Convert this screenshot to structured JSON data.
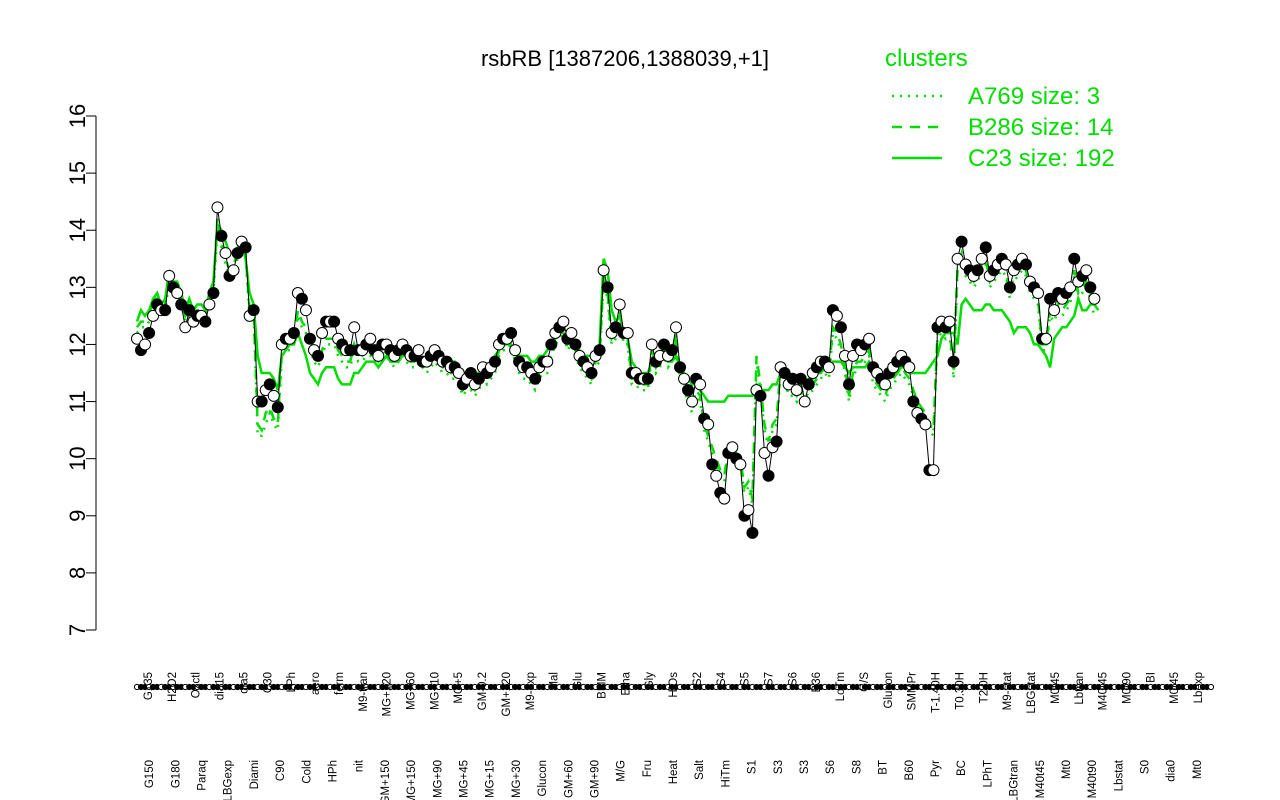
{
  "chart_data": {
    "type": "line",
    "title": "rsbRB [1387206,1388039,+1]",
    "xlabel": "",
    "ylabel": "",
    "ylim": [
      7,
      16
    ],
    "yticks": [
      7,
      8,
      9,
      10,
      11,
      12,
      13,
      14,
      15,
      16
    ],
    "point_count": 268,
    "x_tick_labels_top": [
      "G135",
      "H2O2",
      "Oxctl",
      "dia15",
      "dia5",
      "C30",
      "LPh",
      "aero",
      "ferm",
      "M9-tran",
      "MG+120",
      "MG+60",
      "MG+10",
      "MG+5",
      "GM-0.2",
      "GM+120",
      "M9-exp",
      "Mal",
      "Glu",
      "BMM",
      "Etha",
      "Gly",
      "HiOs",
      "S2",
      "S4",
      "S5",
      "S7",
      "S6",
      "B36",
      "LoTm",
      "G/S",
      "Glucon",
      "SMMPr",
      "T-1.40H",
      "T0.30H",
      "T2.0H",
      "M9-stat",
      "LBGstat",
      "M0t45",
      "Lbtran",
      "M40t45",
      "M0t90",
      "BI",
      "M0t45",
      "Lbexp"
    ],
    "x_tick_labels_bottom": [
      "G150",
      "G180",
      "Paraq",
      "LBGexp",
      "Diami",
      "C90",
      "Cold",
      "HPh",
      "nit",
      "GM+150",
      "MG+150",
      "MG+90",
      "MG+45",
      "MG+15",
      "MG+30",
      "Glucon",
      "GM+60",
      "GM+90",
      "M/G",
      "Fru",
      "Heat",
      "Salt",
      "HiTm",
      "S1",
      "S3",
      "S3",
      "S6",
      "S8",
      "BT",
      "B60",
      "Pyr",
      "BC",
      "LPhT",
      "LBGtran",
      "M40t45",
      "Mt0",
      "M40t90",
      "Lbstat",
      "S0",
      "dia0",
      "Mt0"
    ],
    "legend": {
      "title": "clusters",
      "placement": "top-right",
      "items": [
        {
          "label": "A769 size: 3",
          "style": "dotted"
        },
        {
          "label": "B286 size: 14",
          "style": "dashed"
        },
        {
          "label": "C23 size: 192",
          "style": "solid"
        }
      ]
    },
    "colors": {
      "cluster": "#00dd00",
      "series": "#000000",
      "axes": "#000000"
    },
    "series": [
      {
        "values": [
          12.1,
          11.9,
          12.0,
          12.2,
          12.5,
          12.7,
          12.6,
          12.6,
          13.2,
          13.0,
          12.9,
          12.7,
          12.3,
          12.6,
          12.4,
          12.5,
          12.5,
          12.4,
          12.7,
          12.9,
          14.4,
          13.9,
          13.6,
          13.2,
          13.3,
          13.6,
          13.8,
          13.7,
          12.5,
          12.6,
          11.0,
          11.0,
          11.2,
          11.3,
          11.1,
          10.9,
          12.0,
          12.1,
          12.1,
          12.2,
          12.9,
          12.8,
          12.6,
          12.1,
          11.9,
          11.8,
          12.2,
          12.4,
          12.4,
          12.4,
          12.1,
          12.0,
          11.9,
          11.9,
          12.3,
          11.9,
          11.9,
          12.0,
          12.1,
          11.9,
          11.8,
          12.0,
          12.0,
          11.9,
          11.8,
          11.9,
          12.0,
          11.9,
          11.8,
          11.8,
          11.9,
          11.7,
          11.7,
          11.8,
          11.9,
          11.8,
          11.7,
          11.7,
          11.6,
          11.6,
          11.5,
          11.3,
          11.4,
          11.5,
          11.3,
          11.4,
          11.6,
          11.5,
          11.6,
          11.7,
          12.0,
          12.1,
          12.1,
          12.2,
          11.9,
          11.7,
          11.6,
          11.6,
          11.5,
          11.4,
          11.6,
          11.7,
          11.7,
          12.0,
          12.2,
          12.3,
          12.4,
          12.1,
          12.2,
          12.0,
          11.8,
          11.7,
          11.6,
          11.5,
          11.8,
          11.9,
          13.3,
          13.0,
          12.2,
          12.3,
          12.7,
          12.2,
          12.2,
          11.5,
          11.5,
          11.4,
          11.4,
          11.4,
          12.0,
          11.7,
          11.8,
          12.0,
          11.8,
          11.9,
          12.3,
          11.6,
          11.4,
          11.2,
          11.0,
          11.4,
          11.3,
          10.7,
          10.6,
          9.9,
          9.7,
          9.4,
          9.3,
          10.1,
          10.2,
          10.0,
          9.9,
          9.0,
          9.1,
          8.7,
          11.2,
          11.1,
          10.1,
          9.7,
          10.2,
          10.3,
          11.6,
          11.5,
          11.3,
          11.4,
          11.2,
          11.4,
          11.0,
          11.3,
          11.5,
          11.6,
          11.7,
          11.7,
          11.6,
          12.6,
          12.5,
          12.3,
          11.8,
          11.3,
          11.8,
          12.0,
          11.9,
          12.0,
          12.1,
          11.6,
          11.5,
          11.4,
          11.3,
          11.5,
          11.6,
          11.7,
          11.8,
          11.7,
          11.6,
          11.0,
          10.8,
          10.7,
          10.6,
          9.8,
          9.8,
          12.3,
          12.4,
          12.3,
          12.4,
          11.7,
          13.5,
          13.8,
          13.4,
          13.3,
          13.2,
          13.3,
          13.5,
          13.7,
          13.2,
          13.3,
          13.4,
          13.5,
          13.4,
          13.0,
          13.3,
          13.4,
          13.5,
          13.4,
          13.1,
          13.0,
          12.9,
          12.1,
          12.1,
          12.8,
          12.6,
          12.9,
          12.8,
          12.9,
          13.0,
          13.5,
          13.1,
          13.2,
          13.3,
          13.0,
          12.8
        ]
      },
      {
        "name": "C23 size: 192",
        "style": "solid",
        "values": [
          12.4,
          12.6,
          12.5,
          12.6,
          12.8,
          12.9,
          12.7,
          12.8,
          13.3,
          13.1,
          13.1,
          12.9,
          12.6,
          12.8,
          12.6,
          12.7,
          12.7,
          12.6,
          12.9,
          13.1,
          14.1,
          14.0,
          13.8,
          13.6,
          13.6,
          13.7,
          13.8,
          13.5,
          12.9,
          12.7,
          11.8,
          11.5,
          11.5,
          11.5,
          11.4,
          11.2,
          11.8,
          11.9,
          12.0,
          12.0,
          12.2,
          12.0,
          11.8,
          11.5,
          11.4,
          11.3,
          11.5,
          11.6,
          11.6,
          11.6,
          11.4,
          11.3,
          11.3,
          11.3,
          11.5,
          11.5,
          11.6,
          11.7,
          11.7,
          11.7,
          11.6,
          11.7,
          11.8,
          11.7,
          11.7,
          11.7,
          11.8,
          11.8,
          11.7,
          11.7,
          11.8,
          11.7,
          11.7,
          11.8,
          11.8,
          11.8,
          11.7,
          11.7,
          11.7,
          11.7,
          11.6,
          11.5,
          11.5,
          11.5,
          11.5,
          11.5,
          11.6,
          11.6,
          11.7,
          11.8,
          11.9,
          12.0,
          12.0,
          12.0,
          11.9,
          11.8,
          11.8,
          11.8,
          11.7,
          11.7,
          11.8,
          11.8,
          11.9,
          12.0,
          12.1,
          12.2,
          12.2,
          12.1,
          12.1,
          12.0,
          11.9,
          11.8,
          11.8,
          11.8,
          11.9,
          12.0,
          13.5,
          13.3,
          12.6,
          12.4,
          12.5,
          12.2,
          12.1,
          11.7,
          11.6,
          11.5,
          11.5,
          11.5,
          11.7,
          11.6,
          11.7,
          11.8,
          11.7,
          11.7,
          11.8,
          11.6,
          11.5,
          11.4,
          11.3,
          11.3,
          11.2,
          11.1,
          11.0,
          11.0,
          11.0,
          11.0,
          11.0,
          11.1,
          11.1,
          11.1,
          11.1,
          11.1,
          11.1,
          11.1,
          11.3,
          11.2,
          11.2,
          11.2,
          11.3,
          11.3,
          11.5,
          11.5,
          11.4,
          11.4,
          11.4,
          11.4,
          11.3,
          11.4,
          11.4,
          11.5,
          11.5,
          11.6,
          11.6,
          11.7,
          11.7,
          11.7,
          11.6,
          11.5,
          11.6,
          11.6,
          11.6,
          11.6,
          11.7,
          11.6,
          11.5,
          11.5,
          11.4,
          11.4,
          11.5,
          11.5,
          11.6,
          11.6,
          11.5,
          11.5,
          11.5,
          11.5,
          11.5,
          11.6,
          11.7,
          11.8,
          12.1,
          12.2,
          12.2,
          12.2,
          12.0,
          12.7,
          12.8,
          12.7,
          12.6,
          12.6,
          12.6,
          12.7,
          12.7,
          12.6,
          12.6,
          12.6,
          12.5,
          12.4,
          12.2,
          12.3,
          12.3,
          12.3,
          12.2,
          12.0,
          12.0,
          11.9,
          11.8,
          11.6,
          12.1,
          12.2,
          12.3,
          12.3,
          12.4,
          12.5,
          12.8,
          12.6,
          12.6,
          12.7,
          12.7,
          12.6
        ]
      },
      {
        "name": "B286 size: 14",
        "style": "dashed",
        "values": [
          12.3,
          12.4,
          12.4,
          12.5,
          12.8,
          12.8,
          12.6,
          12.7,
          13.2,
          13.0,
          12.9,
          12.8,
          12.5,
          12.6,
          12.5,
          12.6,
          12.6,
          12.5,
          12.8,
          13.0,
          14.2,
          13.8,
          13.5,
          13.3,
          13.4,
          13.6,
          13.7,
          13.6,
          12.6,
          12.6,
          10.6,
          10.5,
          10.8,
          10.9,
          10.7,
          10.6,
          11.9,
          12.0,
          12.0,
          12.1,
          12.6,
          12.4,
          12.3,
          12.0,
          11.8,
          11.7,
          11.9,
          12.1,
          12.1,
          12.1,
          11.9,
          11.8,
          11.7,
          11.7,
          12.0,
          11.8,
          11.8,
          11.9,
          11.9,
          11.8,
          11.7,
          11.8,
          11.9,
          11.8,
          11.7,
          11.8,
          11.9,
          11.8,
          11.7,
          11.7,
          11.8,
          11.7,
          11.6,
          11.7,
          11.8,
          11.7,
          11.6,
          11.6,
          11.5,
          11.5,
          11.4,
          11.2,
          11.3,
          11.3,
          11.2,
          11.3,
          11.5,
          11.4,
          11.5,
          11.6,
          11.9,
          12.0,
          12.0,
          12.1,
          11.8,
          11.6,
          11.5,
          11.5,
          11.4,
          11.3,
          11.5,
          11.6,
          11.6,
          11.9,
          12.1,
          12.2,
          12.3,
          12.0,
          12.1,
          11.9,
          11.7,
          11.6,
          11.5,
          11.4,
          11.7,
          11.8,
          13.2,
          12.9,
          12.1,
          12.2,
          12.6,
          12.1,
          12.1,
          11.4,
          11.4,
          11.3,
          11.3,
          11.3,
          11.9,
          11.6,
          11.7,
          11.9,
          11.7,
          11.8,
          12.2,
          11.5,
          11.3,
          11.1,
          10.9,
          11.2,
          11.1,
          10.6,
          10.4,
          10.2,
          10.0,
          9.8,
          9.7,
          10.2,
          10.2,
          10.1,
          10.0,
          9.5,
          9.6,
          9.3,
          11.8,
          11.3,
          10.6,
          10.3,
          10.6,
          10.7,
          11.6,
          11.5,
          11.2,
          11.2,
          11.1,
          11.3,
          11.0,
          11.2,
          11.3,
          11.4,
          11.5,
          11.6,
          11.5,
          12.3,
          12.2,
          12.0,
          11.6,
          11.1,
          11.5,
          11.7,
          11.7,
          11.8,
          11.9,
          11.4,
          11.3,
          11.2,
          11.1,
          11.3,
          11.4,
          11.5,
          11.6,
          11.5,
          11.4,
          11.2,
          11.0,
          10.9,
          10.8,
          10.6,
          10.5,
          12.2,
          12.3,
          12.2,
          12.3,
          11.5,
          13.4,
          13.6,
          13.3,
          13.2,
          13.1,
          13.2,
          13.4,
          13.5,
          13.1,
          13.2,
          13.3,
          13.4,
          13.3,
          12.9,
          13.2,
          13.3,
          13.4,
          13.3,
          13.0,
          12.9,
          12.8,
          12.0,
          12.0,
          12.6,
          12.5,
          12.7,
          12.6,
          12.7,
          12.8,
          13.3,
          12.9,
          13.0,
          13.1,
          12.9,
          12.6
        ]
      },
      {
        "name": "A769 size: 3",
        "style": "dotted",
        "values": [
          12.2,
          12.3,
          12.3,
          12.4,
          12.7,
          12.7,
          12.5,
          12.6,
          13.1,
          12.9,
          12.8,
          12.7,
          12.4,
          12.5,
          12.4,
          12.5,
          12.5,
          12.4,
          12.7,
          12.9,
          14.0,
          13.7,
          13.4,
          13.2,
          13.3,
          13.5,
          13.6,
          13.5,
          12.5,
          12.5,
          10.4,
          10.4,
          10.6,
          10.8,
          10.6,
          10.5,
          11.8,
          11.9,
          11.9,
          12.0,
          12.5,
          12.3,
          12.2,
          11.9,
          11.7,
          11.6,
          11.8,
          12.0,
          12.0,
          12.0,
          11.8,
          11.7,
          11.6,
          11.6,
          11.9,
          11.7,
          11.7,
          11.8,
          11.8,
          11.7,
          11.6,
          11.7,
          11.8,
          11.7,
          11.6,
          11.7,
          11.8,
          11.7,
          11.6,
          11.6,
          11.7,
          11.6,
          11.5,
          11.6,
          11.7,
          11.6,
          11.5,
          11.5,
          11.4,
          11.4,
          11.3,
          11.1,
          11.2,
          11.2,
          11.1,
          11.2,
          11.4,
          11.3,
          11.4,
          11.5,
          11.8,
          11.9,
          11.9,
          12.0,
          11.7,
          11.5,
          11.4,
          11.4,
          11.3,
          11.2,
          11.4,
          11.5,
          11.5,
          11.8,
          12.0,
          12.1,
          12.2,
          11.9,
          12.0,
          11.8,
          11.6,
          11.5,
          11.4,
          11.3,
          11.6,
          11.7,
          13.1,
          12.8,
          12.0,
          12.1,
          12.5,
          12.0,
          12.0,
          11.3,
          11.3,
          11.2,
          11.2,
          11.2,
          11.8,
          11.5,
          11.6,
          11.8,
          11.6,
          11.7,
          12.1,
          11.4,
          11.2,
          11.0,
          10.8,
          11.1,
          11.0,
          10.5,
          10.3,
          10.1,
          9.9,
          9.7,
          9.6,
          10.1,
          10.1,
          10.0,
          9.9,
          9.4,
          9.5,
          9.2,
          11.7,
          11.2,
          10.5,
          10.2,
          10.5,
          10.6,
          11.5,
          11.4,
          11.1,
          11.1,
          11.0,
          11.2,
          10.9,
          11.1,
          11.2,
          11.3,
          11.4,
          11.5,
          11.4,
          12.2,
          12.1,
          11.9,
          11.5,
          11.0,
          11.4,
          11.6,
          11.6,
          11.7,
          11.8,
          11.3,
          11.2,
          11.1,
          11.0,
          11.2,
          11.3,
          11.4,
          11.5,
          11.4,
          11.3,
          11.1,
          10.9,
          10.8,
          10.7,
          10.5,
          10.4,
          12.1,
          12.2,
          12.1,
          12.2,
          11.4,
          13.3,
          13.5,
          13.2,
          13.1,
          13.0,
          13.1,
          13.3,
          13.4,
          13.0,
          13.1,
          13.2,
          13.3,
          13.2,
          12.8,
          13.1,
          13.2,
          13.3,
          13.2,
          12.9,
          12.8,
          12.7,
          11.9,
          11.9,
          12.5,
          12.4,
          12.6,
          12.5,
          12.6,
          12.7,
          13.2,
          12.8,
          12.9,
          13.0,
          12.8,
          12.5
        ]
      }
    ]
  }
}
